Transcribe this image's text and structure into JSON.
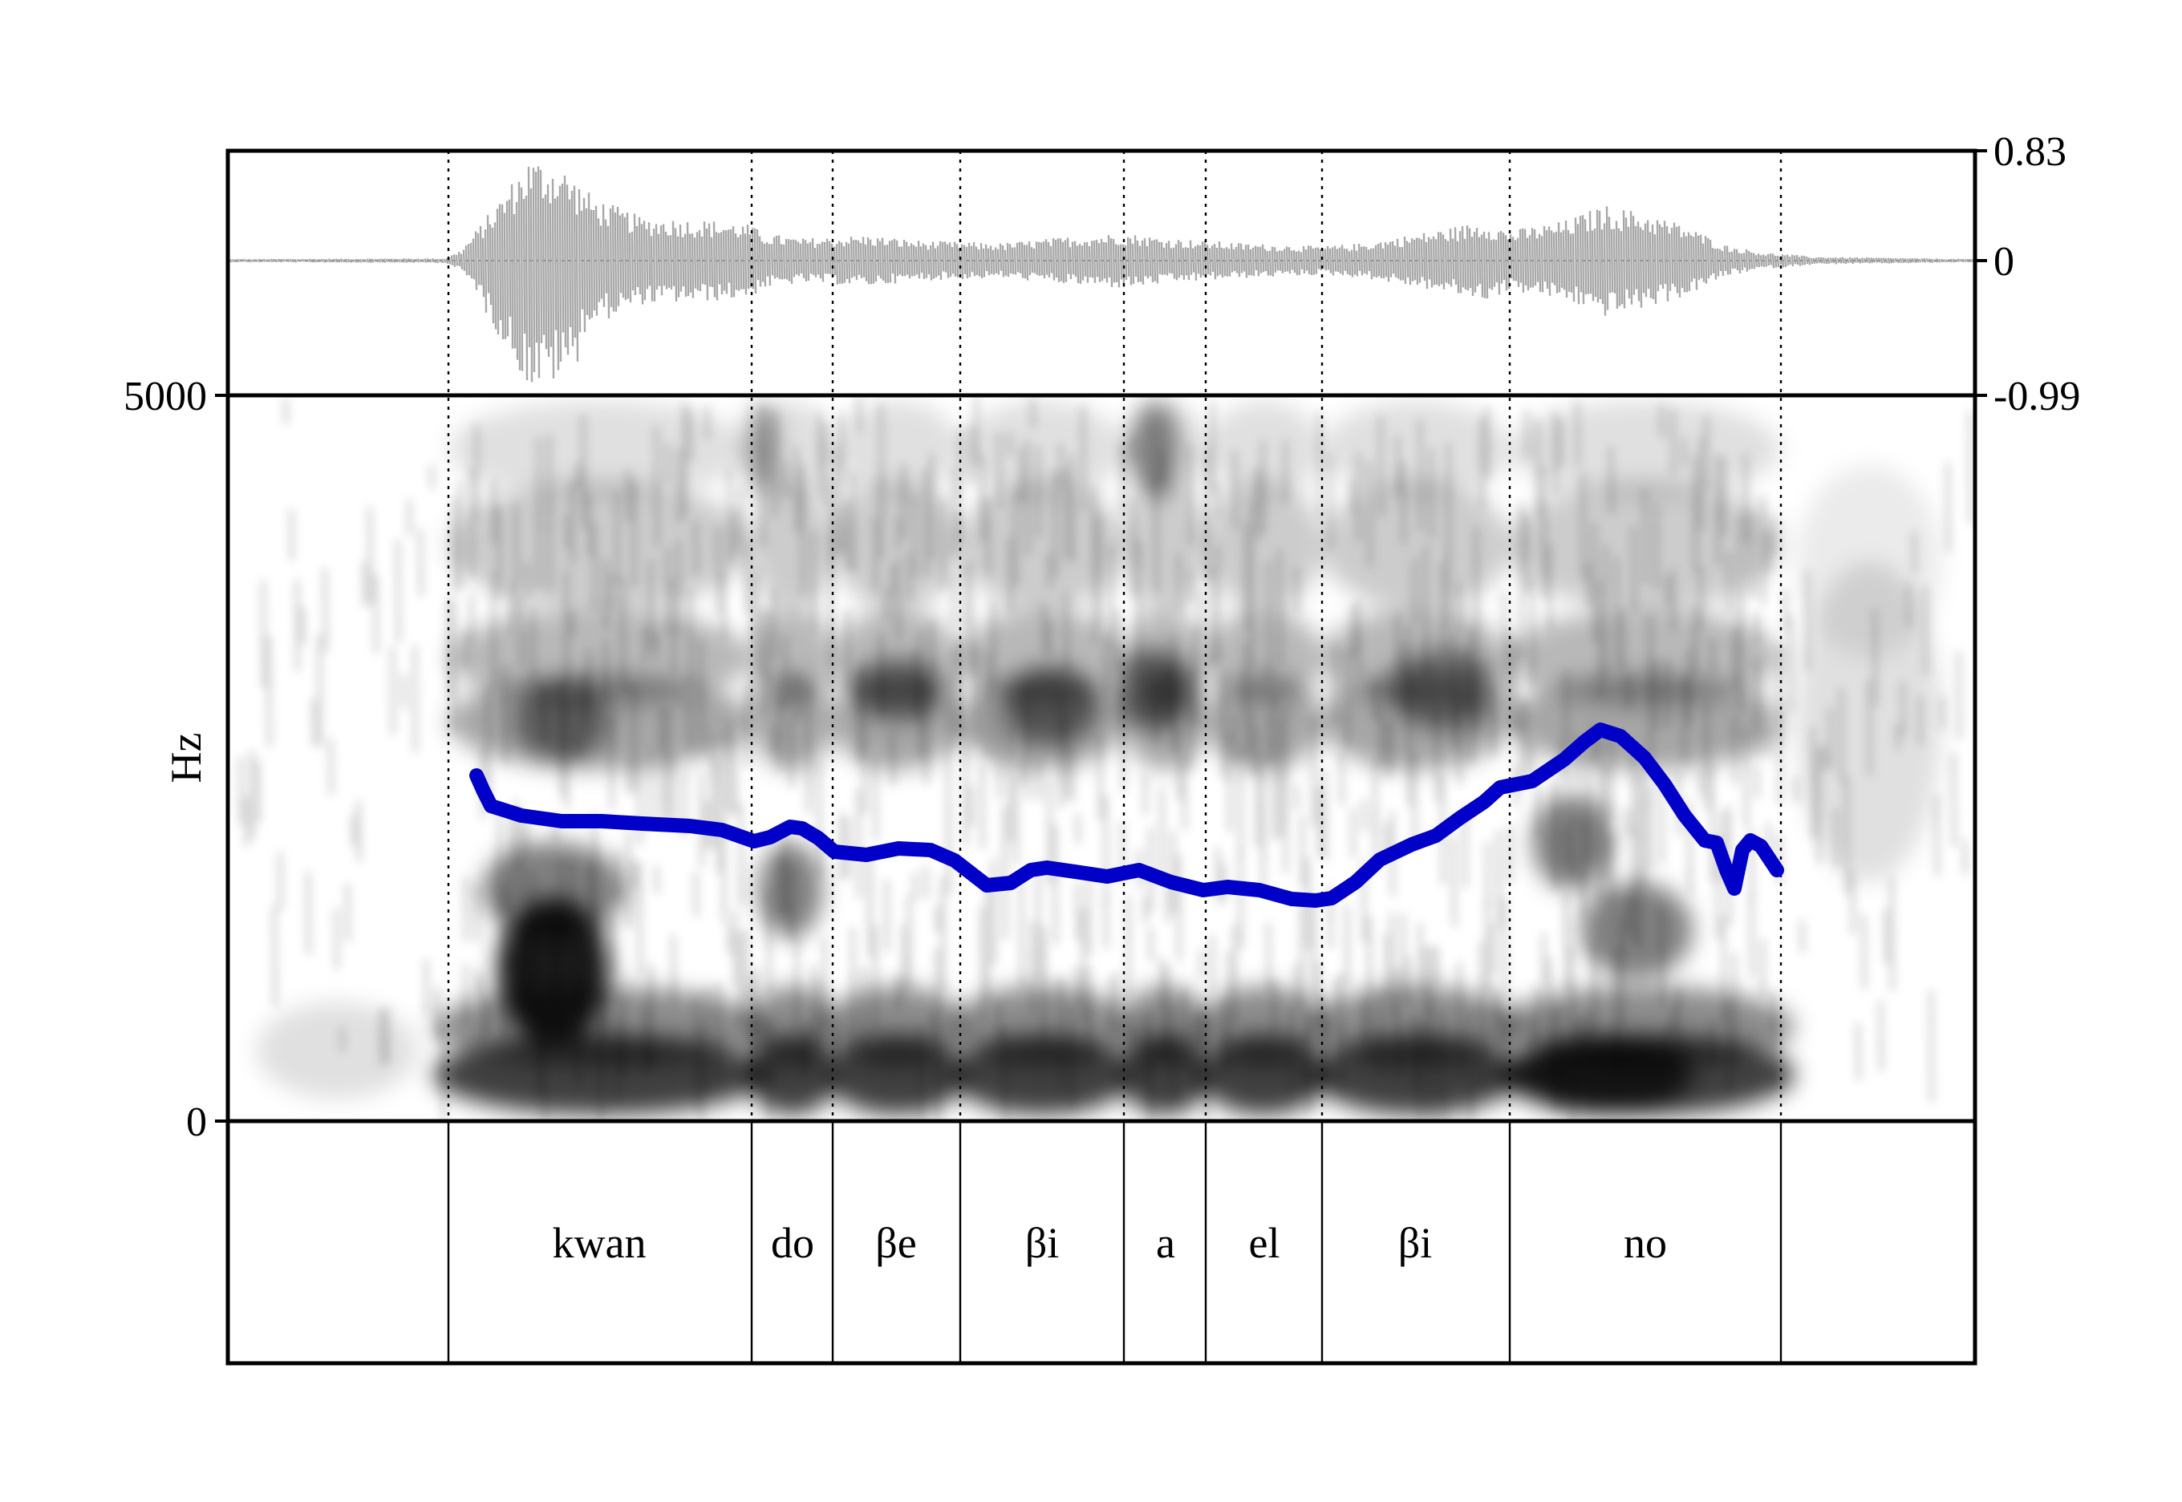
{
  "waveform": {
    "ticks": [
      "0.83",
      "0",
      "-0.99"
    ]
  },
  "spectrogram": {
    "ylabel": "Hz",
    "y_ticks": [
      "5000",
      "0"
    ],
    "ylim": [
      0,
      5000
    ]
  },
  "segments": [
    "",
    "kwan",
    "do",
    "βe",
    "βi",
    "a",
    "el",
    "βi",
    "no",
    ""
  ],
  "colors": {
    "pitch_track": "#0000c8",
    "waveform": "#a8a8a8",
    "frame": "#000000",
    "spectrogram_ink": "#000000"
  }
}
